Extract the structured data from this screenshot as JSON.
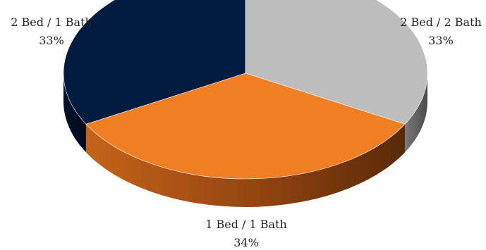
{
  "chart_data": {
    "type": "pie",
    "title": "",
    "style": "3d",
    "legend": "none",
    "slices": [
      {
        "label": "2 Bed / 2 Bath",
        "percent_label": "33%",
        "value": 33,
        "color": "#bdbdbd"
      },
      {
        "label": "1 Bed / 1 Bath",
        "percent_label": "34%",
        "value": 34,
        "color": "#f07f24"
      },
      {
        "label": "2 Bed / 1 Bath",
        "percent_label": "33%",
        "value": 33,
        "color": "#011c3e"
      }
    ]
  }
}
